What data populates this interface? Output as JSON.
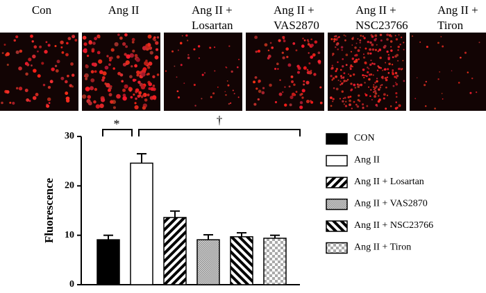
{
  "chart_data": {
    "type": "bar",
    "panels": [
      {
        "label": [
          "Con"
        ]
      },
      {
        "label": [
          "Ang II"
        ]
      },
      {
        "label": [
          "Ang II +",
          "Losartan"
        ]
      },
      {
        "label": [
          "Ang II +",
          "VAS2870"
        ]
      },
      {
        "label": [
          "Ang II +",
          "NSC23766"
        ]
      },
      {
        "label": [
          "Ang II +",
          "Tiron"
        ]
      }
    ],
    "ylabel": "Fluorescence",
    "categories": [
      "CON",
      "Ang II",
      "Ang II + Losartan",
      "Ang II + VAS2870",
      "Ang II + NSC23766",
      "Ang II + Tiron"
    ],
    "values": [
      9.1,
      24.6,
      13.6,
      9.1,
      9.7,
      9.4
    ],
    "errors": [
      0.9,
      1.9,
      1.3,
      1.0,
      0.8,
      0.6
    ],
    "fills": [
      "black",
      "white",
      "hatch",
      "dots",
      "back-hatch",
      "checker"
    ],
    "ylim": [
      0,
      30
    ],
    "yticks": [
      0,
      10,
      20,
      30
    ],
    "annotations": [
      "*",
      "†"
    ]
  }
}
